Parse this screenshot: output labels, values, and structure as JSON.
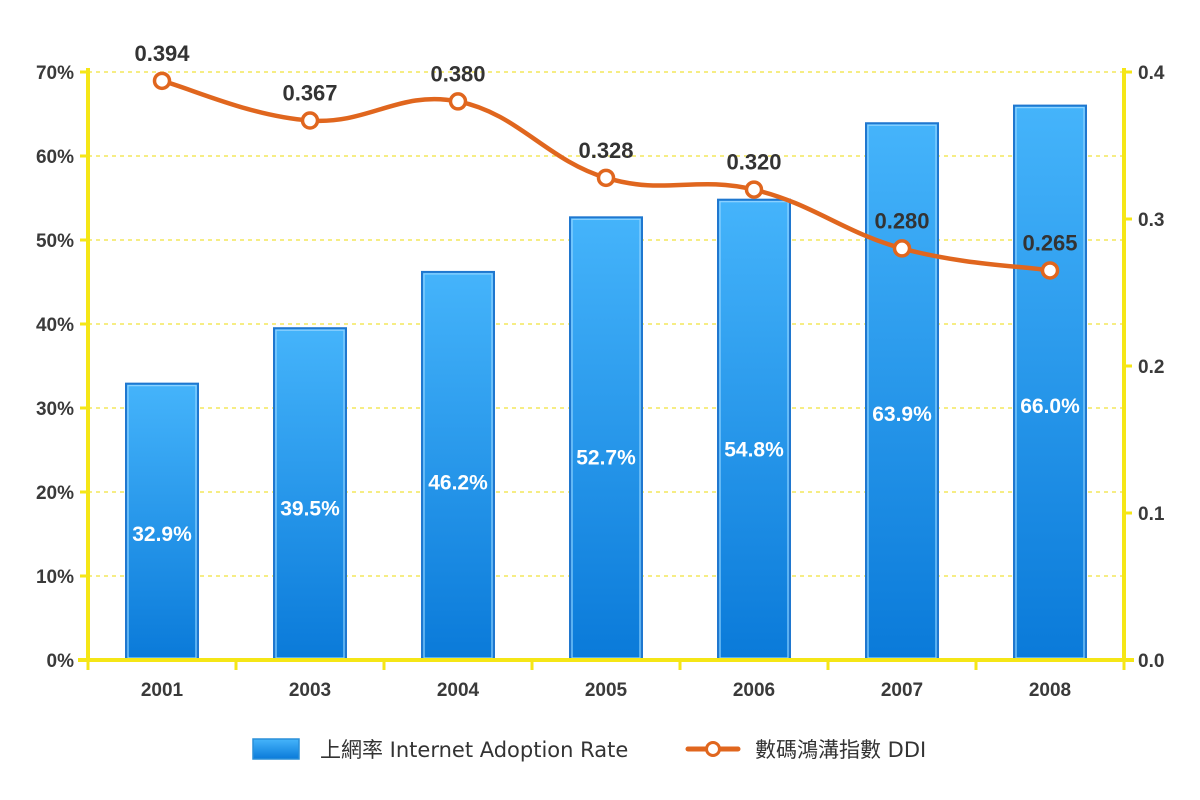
{
  "chart_data": {
    "type": "bar",
    "categories": [
      "2001",
      "2003",
      "2004",
      "2005",
      "2006",
      "2007",
      "2008"
    ],
    "series": [
      {
        "name": "上網率 Internet Adoption Rate",
        "kind": "bar",
        "axis": "left",
        "values": [
          32.9,
          39.5,
          46.2,
          52.7,
          54.8,
          63.9,
          66.0
        ],
        "labels": [
          "32.9%",
          "39.5%",
          "46.2%",
          "52.7%",
          "54.8%",
          "63.9%",
          "66.0%"
        ],
        "color": "#1e90e6"
      },
      {
        "name": "數碼鴻溝指數 DDI",
        "kind": "line",
        "axis": "right",
        "values": [
          0.394,
          0.367,
          0.38,
          0.328,
          0.32,
          0.28,
          0.265
        ],
        "labels": [
          "0.394",
          "0.367",
          "0.380",
          "0.328",
          "0.320",
          "0.280",
          "0.265"
        ],
        "color": "#e0661e"
      }
    ],
    "y_left": {
      "min": 0,
      "max": 70,
      "unit": "%",
      "ticks": [
        "0%",
        "10%",
        "20%",
        "30%",
        "40%",
        "50%",
        "60%",
        "70%"
      ]
    },
    "y_right": {
      "min": 0,
      "max": 0.4,
      "ticks": [
        "0.0",
        "0.1",
        "0.2",
        "0.3",
        "0.4"
      ]
    },
    "grid": true,
    "axis_color": "#f5e616",
    "legend_position": "bottom"
  }
}
